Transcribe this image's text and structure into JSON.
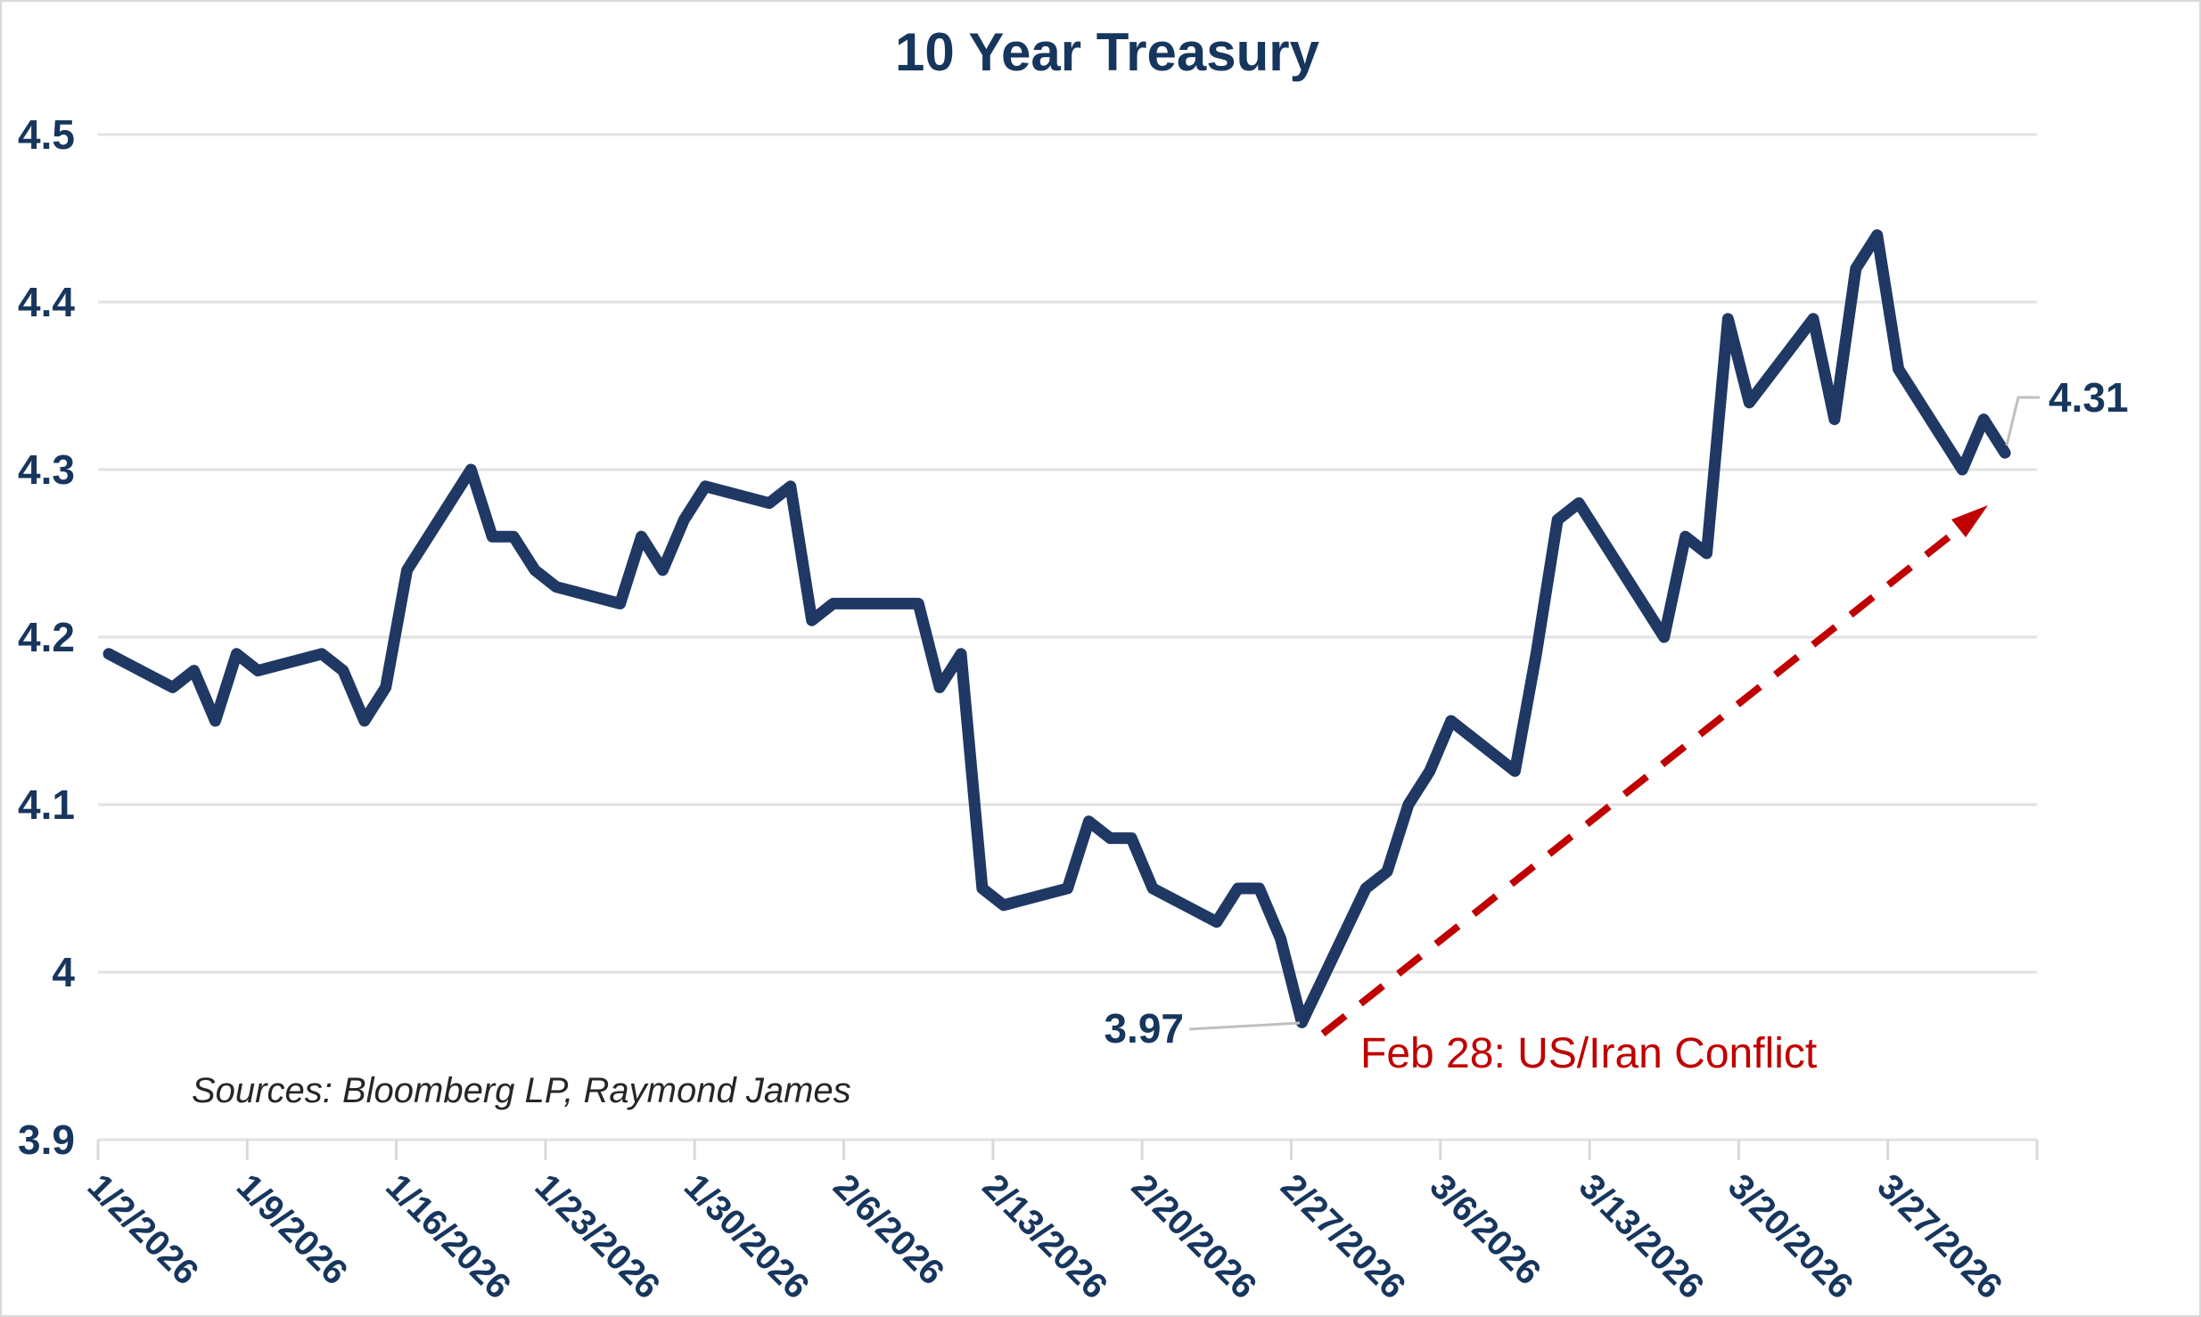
{
  "title": "10 Year Treasury",
  "sources": "Sources: Bloomberg LP, Raymond James",
  "colors": {
    "line_navy": "#1F3864",
    "label_navy": "#17365D",
    "event_red": "#C00000",
    "gridline_gray": "#E2E2E2",
    "tick_gray": "#D9D9D9",
    "leader_gray": "#BFBFBF",
    "background": "#FFFFFF",
    "border": "#D9D9D9"
  },
  "annotations": {
    "min_label": "3.97",
    "end_label": "4.31",
    "event_label": "Feb 28: US/Iran Conflict"
  },
  "chart_data": {
    "type": "line",
    "title": "10 Year Treasury",
    "xlabel": "",
    "ylabel": "",
    "ylim": [
      3.9,
      4.5
    ],
    "grid": "horizontal-only",
    "legend": "none",
    "y_tick_labels": [
      "4.5",
      "4.4",
      "4.3",
      "4.2",
      "4.1",
      "4",
      "3.9"
    ],
    "y_tick_values": [
      4.5,
      4.4,
      4.3,
      4.2,
      4.1,
      4.0,
      3.9
    ],
    "x_tick_labels": [
      "1/2/2026",
      "1/9/2026",
      "1/16/2026",
      "1/23/2026",
      "1/30/2026",
      "2/6/2026",
      "2/13/2026",
      "2/20/2026",
      "2/27/2026",
      "3/6/2026",
      "3/13/2026",
      "3/20/2026",
      "3/27/2026"
    ],
    "series": [
      {
        "name": "10 Year Treasury Yield",
        "dates": [
          "1/2/2026",
          "1/5/2026",
          "1/6/2026",
          "1/7/2026",
          "1/8/2026",
          "1/9/2026",
          "1/12/2026",
          "1/13/2026",
          "1/14/2026",
          "1/15/2026",
          "1/16/2026",
          "1/19/2026",
          "1/20/2026",
          "1/21/2026",
          "1/22/2026",
          "1/23/2026",
          "1/26/2026",
          "1/27/2026",
          "1/28/2026",
          "1/29/2026",
          "1/30/2026",
          "2/2/2026",
          "2/3/2026",
          "2/4/2026",
          "2/5/2026",
          "2/6/2026",
          "2/9/2026",
          "2/10/2026",
          "2/11/2026",
          "2/12/2026",
          "2/13/2026",
          "2/16/2026",
          "2/17/2026",
          "2/18/2026",
          "2/19/2026",
          "2/20/2026",
          "2/23/2026",
          "2/24/2026",
          "2/25/2026",
          "2/26/2026",
          "2/27/2026",
          "3/2/2026",
          "3/3/2026",
          "3/4/2026",
          "3/5/2026",
          "3/6/2026",
          "3/9/2026",
          "3/10/2026",
          "3/11/2026",
          "3/12/2026",
          "3/13/2026",
          "3/16/2026",
          "3/17/2026",
          "3/18/2026",
          "3/19/2026",
          "3/20/2026",
          "3/23/2026",
          "3/24/2026",
          "3/25/2026",
          "3/26/2026",
          "3/27/2026",
          "3/30/2026",
          "3/31/2026",
          "4/1/2026"
        ],
        "values": [
          4.19,
          4.17,
          4.18,
          4.15,
          4.19,
          4.18,
          4.19,
          4.18,
          4.15,
          4.17,
          4.24,
          4.3,
          4.26,
          4.26,
          4.24,
          4.23,
          4.22,
          4.26,
          4.24,
          4.27,
          4.29,
          4.28,
          4.29,
          4.21,
          4.22,
          4.22,
          4.22,
          4.17,
          4.19,
          4.05,
          4.04,
          4.05,
          4.09,
          4.08,
          4.08,
          4.05,
          4.03,
          4.05,
          4.05,
          4.02,
          3.97,
          4.05,
          4.06,
          4.1,
          4.12,
          4.15,
          4.12,
          4.19,
          4.27,
          4.28,
          4.26,
          4.2,
          4.26,
          4.25,
          4.39,
          4.34,
          4.39,
          4.33,
          4.42,
          4.44,
          4.36,
          4.3,
          4.33,
          4.31
        ]
      }
    ],
    "notable_points": {
      "min": {
        "date": "2/27/2026",
        "value": 3.97
      },
      "last": {
        "date": "4/1/2026",
        "value": 4.31
      }
    }
  }
}
